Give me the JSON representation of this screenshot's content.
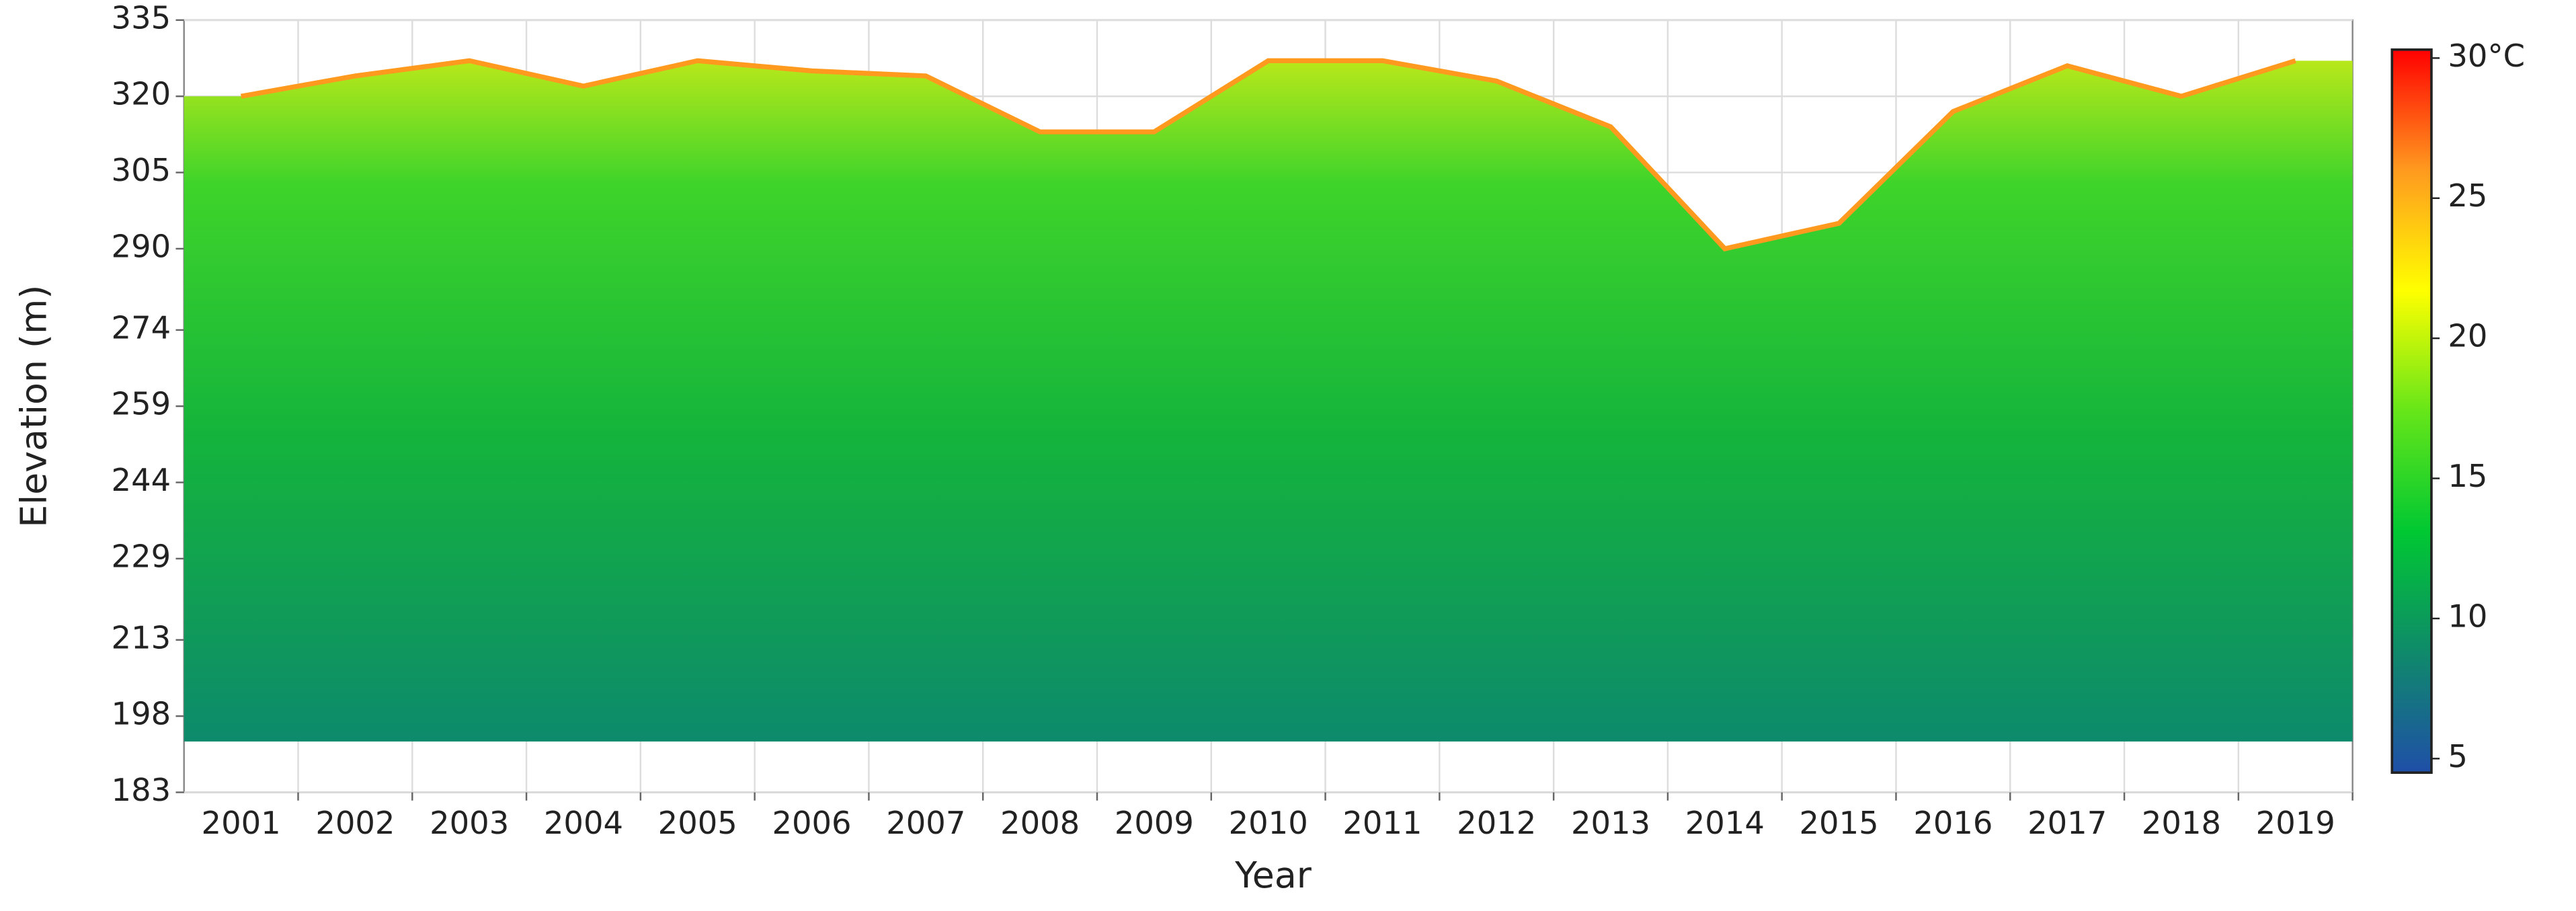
{
  "chart_data": {
    "type": "area",
    "x_label": "Year",
    "y_label": "Elevation (m)",
    "categories": [
      "2001",
      "2002",
      "2003",
      "2004",
      "2005",
      "2006",
      "2007",
      "2008",
      "2009",
      "2010",
      "2011",
      "2012",
      "2013",
      "2014",
      "2015",
      "2016",
      "2017",
      "2018",
      "2019"
    ],
    "values": [
      320,
      324,
      327,
      322,
      327,
      325,
      324,
      313,
      313,
      327,
      327,
      323,
      314,
      290,
      295,
      317,
      326,
      320,
      327
    ],
    "area_base": 193,
    "ylim": [
      183,
      335
    ],
    "yticks": [
      183,
      198,
      213,
      229,
      244,
      259,
      274,
      290,
      305,
      320,
      335
    ],
    "grid": true,
    "colormap": [
      "#1f4fa8",
      "#0f8a6a",
      "#00c832",
      "#66e619",
      "#ffff00",
      "#ff9a1f",
      "#ff0000"
    ],
    "zlim": [
      4.5,
      30.3
    ],
    "zticks": [
      5,
      10,
      15,
      20,
      25,
      {
        "value": 30,
        "label": "30°C"
      }
    ]
  }
}
